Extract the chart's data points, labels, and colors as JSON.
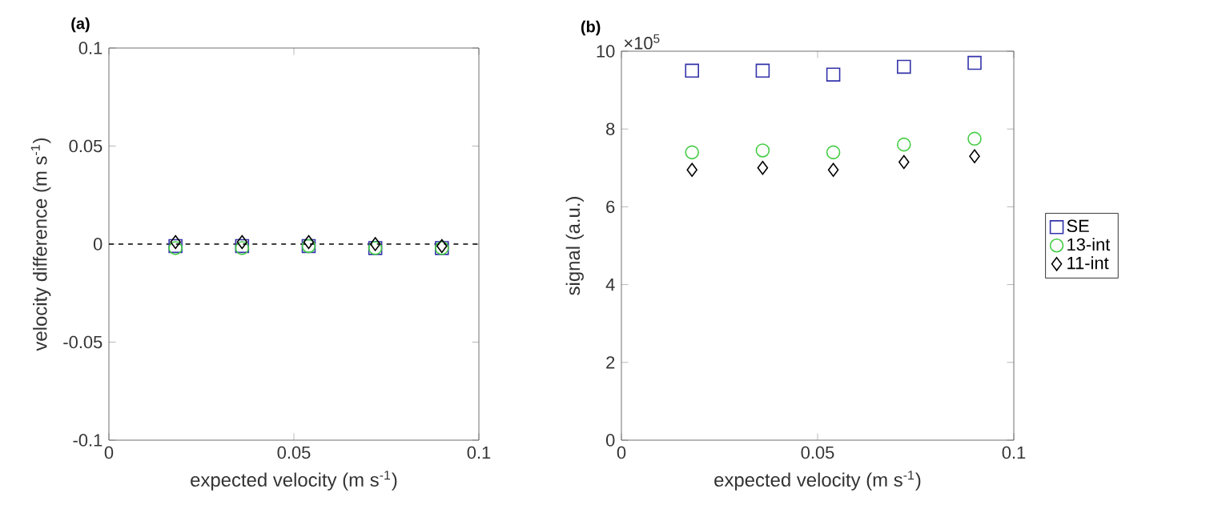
{
  "chart_data": [
    {
      "type": "scatter",
      "title": "(a)",
      "xlabel": "expected velocity (m s$^{-1}$)",
      "ylabel": "velocity difference (m s$^{-1}$)",
      "x": [
        0.018,
        0.036,
        0.054,
        0.072,
        0.09
      ],
      "series": [
        {
          "color": "#3333aa",
          "marker": "square",
          "values": [
            -0.001,
            -0.001,
            -0.001,
            -0.002,
            -0.002
          ]
        },
        {
          "color": "#44cc44",
          "marker": "circle",
          "values": [
            -0.002,
            -0.002,
            -0.001,
            -0.002,
            -0.002
          ]
        },
        {
          "color": "#000000",
          "marker": "diamond",
          "values": [
            0.001,
            0.001,
            0.001,
            0,
            -0.001
          ]
        }
      ],
      "xlim": [
        0,
        0.1
      ],
      "xticks": [
        0,
        0.05,
        0.1
      ],
      "ylim": [
        -0.1,
        0.1
      ],
      "yticks": [
        -0.1,
        -0.05,
        0,
        0.05,
        0.1
      ],
      "ref_lines": [
        {
          "axis": "y",
          "value": 0,
          "color": "#000000",
          "line_style": "dashed"
        }
      ]
    },
    {
      "type": "scatter",
      "title": "(b)",
      "xlabel": "expected velocity (m s$^{-1}$)",
      "ylabel": "signal (a.u.)",
      "annotations": [
        "×10$^{5}$"
      ],
      "x": [
        0.018,
        0.036,
        0.054,
        0.072,
        0.09
      ],
      "series": [
        {
          "name": "SE",
          "color": "#3333aa",
          "marker": "square",
          "values": [
            9.5,
            9.5,
            9.4,
            9.6,
            9.7
          ]
        },
        {
          "name": "13-int",
          "color": "#44cc44",
          "marker": "circle",
          "values": [
            7.4,
            7.45,
            7.4,
            7.6,
            7.75
          ]
        },
        {
          "name": "11-int",
          "color": "#000000",
          "marker": "diamond",
          "values": [
            6.95,
            7.0,
            6.95,
            7.15,
            7.3
          ]
        }
      ],
      "xlim": [
        0,
        0.1
      ],
      "xticks": [
        0,
        0.05,
        0.1
      ],
      "ylim": [
        0,
        10
      ],
      "yticks": [
        0,
        2,
        4,
        6,
        8,
        10
      ],
      "legend": "right"
    }
  ]
}
